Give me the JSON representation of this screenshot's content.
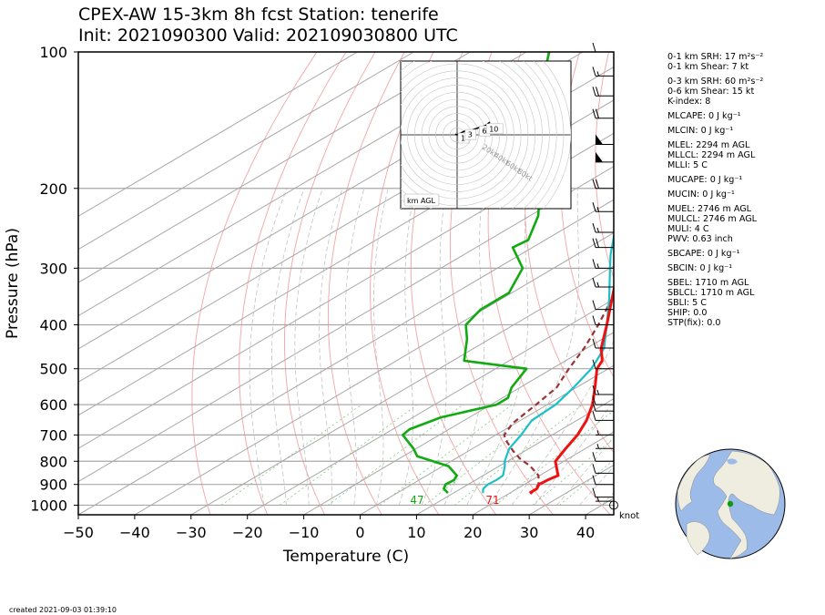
{
  "header": {
    "title_line1": "CPEX-AW 15-3km  8h fcst  Station: tenerife",
    "title_line2": "Init: 2021090300  Valid: 202109030800 UTC"
  },
  "footer": {
    "created": "created 2021-09-03 01:39:10"
  },
  "hodograph": {
    "label": "km AGL",
    "ring_labels": [
      "20kt",
      "40kt",
      "60kt",
      "80kt"
    ],
    "height_labels": [
      "1",
      "3",
      "6",
      "10"
    ],
    "u_kt": [
      -3,
      0,
      4,
      10,
      16,
      30,
      40,
      46
    ],
    "v_kt": [
      1,
      0,
      2,
      5,
      5,
      10,
      13,
      18
    ]
  },
  "indices": [
    "0-1 km SRH: 17 m²s⁻²",
    "0-1 km Shear: 7 kt",
    "0-3 km SRH: 60 m²s⁻²",
    "0-6 km Shear: 15 kt",
    "K-index: 8",
    "MLCAPE: 0 J kg⁻¹",
    "MLCIN: 0 J kg⁻¹",
    "MLEL: 2294 m AGL",
    "MLLCL: 2294 m AGL",
    "MLLI: 5 C",
    "MUCAPE: 0 J kg⁻¹",
    "MUCIN: 0 J kg⁻¹",
    "MUEL: 2746 m AGL",
    "MULCL: 2746 m AGL",
    "MULI: 4 C",
    "PWV: 0.63 inch",
    "SBCAPE: 0 J kg⁻¹",
    "SBCIN: 0 J kg⁻¹",
    "SBEL: 1710 m AGL",
    "SBLCL: 1710 m AGL",
    "SBLI: 5 C",
    "SHIP: 0.0",
    "STP(fix): 0.0"
  ],
  "chart_data": {
    "type": "line",
    "xlabel": "Temperature (C)",
    "ylabel": "Pressure (hPa)",
    "xlim": [
      -50,
      45
    ],
    "ylim": [
      1050,
      100
    ],
    "y_scale": "log",
    "skew": true,
    "x_ticks": [
      -50,
      -40,
      -30,
      -20,
      -10,
      0,
      10,
      20,
      30,
      40
    ],
    "y_ticks": [
      100,
      200,
      300,
      400,
      500,
      600,
      700,
      800,
      900,
      1000
    ],
    "grid": true,
    "surface_labels": {
      "temperature": "71",
      "dewpoint": "47"
    },
    "wind_units": "knot",
    "colors": {
      "temperature": "#ee1111",
      "dewpoint": "#11aa11",
      "virtual_temperature": "#19c0c8",
      "parcel": "#993333"
    },
    "series": [
      {
        "points": [
          [
            940,
            23.5
          ],
          [
            920,
            23.5
          ],
          [
            900,
            22.6
          ],
          [
            880,
            22.8
          ],
          [
            860,
            23.3
          ],
          [
            850,
            22.5
          ],
          [
            800,
            18.5
          ],
          [
            750,
            16.5
          ],
          [
            700,
            14.5
          ],
          [
            650,
            11.7
          ],
          [
            600,
            8.0
          ],
          [
            550,
            3.3
          ],
          [
            500,
            -2.0
          ],
          [
            480,
            -3.5
          ],
          [
            450,
            -7.5
          ],
          [
            400,
            -13.5
          ],
          [
            350,
            -20.5
          ],
          [
            300,
            -28.5
          ],
          [
            280,
            -32.0
          ],
          [
            250,
            -37.0
          ],
          [
            200,
            -45.5
          ],
          [
            180,
            -49.0
          ],
          [
            150,
            -56.0
          ],
          [
            125,
            -63.5
          ],
          [
            100,
            -71.0
          ]
        ]
      },
      {
        "points": [
          [
            940,
            9.0
          ],
          [
            920,
            7.0
          ],
          [
            900,
            6.0
          ],
          [
            880,
            6.2
          ],
          [
            860,
            5.3
          ],
          [
            820,
            1.0
          ],
          [
            780,
            -7.5
          ],
          [
            750,
            -10.5
          ],
          [
            700,
            -16.5
          ],
          [
            680,
            -17.0
          ],
          [
            640,
            -15.0
          ],
          [
            600,
            -9.0
          ],
          [
            580,
            -9.0
          ],
          [
            550,
            -11.5
          ],
          [
            500,
            -14.5
          ],
          [
            480,
            -28.0
          ],
          [
            430,
            -34.0
          ],
          [
            400,
            -38.5
          ],
          [
            370,
            -40.5
          ],
          [
            340,
            -40.5
          ],
          [
            300,
            -45.5
          ],
          [
            270,
            -53.5
          ],
          [
            260,
            -53.0
          ],
          [
            230,
            -58.5
          ],
          [
            200,
            -66.5
          ],
          [
            170,
            -74.0
          ],
          [
            160,
            -82.0
          ],
          [
            140,
            -90.0
          ],
          [
            120,
            -96.5
          ],
          [
            100,
            -106.0
          ]
        ]
      },
      {
        "points": [
          [
            940,
            15.2
          ],
          [
            920,
            14.0
          ],
          [
            900,
            13.5
          ],
          [
            880,
            13.7
          ],
          [
            860,
            13.5
          ],
          [
            820,
            11.0
          ],
          [
            800,
            9.5
          ],
          [
            750,
            6.5
          ],
          [
            700,
            4.5
          ],
          [
            650,
            2.0
          ],
          [
            600,
            1.5
          ],
          [
            550,
            -0.5
          ],
          [
            500,
            -3.0
          ],
          [
            480,
            -4.5
          ],
          [
            450,
            -7.0
          ],
          [
            400,
            -13.5
          ],
          [
            350,
            -21.0
          ],
          [
            300,
            -30.0
          ],
          [
            280,
            -34.0
          ],
          [
            250,
            -40.0
          ],
          [
            200,
            -47.5
          ],
          [
            180,
            -51.5
          ],
          [
            150,
            -59.0
          ],
          [
            125,
            -68.0
          ],
          [
            100,
            -74.0
          ]
        ]
      },
      {
        "points": [
          [
            945,
            24.0
          ],
          [
            900,
            22.5
          ],
          [
            860,
            19.8
          ],
          [
            820,
            15.5
          ],
          [
            790,
            11.5
          ],
          [
            760,
            8.0
          ],
          [
            720,
            3.5
          ],
          [
            700,
            1.5
          ],
          [
            660,
            -0.5
          ],
          [
            600,
            -2.0
          ],
          [
            550,
            -3.5
          ],
          [
            500,
            -7.0
          ],
          [
            450,
            -10.5
          ],
          [
            400,
            -15.0
          ],
          [
            350,
            -20.5
          ],
          [
            300,
            -27.5
          ],
          [
            250,
            -36.0
          ],
          [
            200,
            -46.0
          ],
          [
            170,
            -53.0
          ],
          [
            150,
            -58.5
          ],
          [
            130,
            -65.0
          ],
          [
            115,
            -70.0
          ]
        ]
      }
    ],
    "wind_barbs": [
      {
        "p": 1000,
        "speed": 0
      },
      {
        "p": 980,
        "speed": 5
      },
      {
        "p": 960,
        "speed": 10
      },
      {
        "p": 900,
        "speed": 10
      },
      {
        "p": 850,
        "speed": 10
      },
      {
        "p": 800,
        "speed": 10
      },
      {
        "p": 750,
        "speed": 5
      },
      {
        "p": 700,
        "speed": 5
      },
      {
        "p": 650,
        "speed": 10
      },
      {
        "p": 620,
        "speed": 10
      },
      {
        "p": 600,
        "speed": 10
      },
      {
        "p": 570,
        "speed": 15
      },
      {
        "p": 500,
        "speed": 10
      },
      {
        "p": 450,
        "speed": 10
      },
      {
        "p": 400,
        "speed": 10
      },
      {
        "p": 370,
        "speed": 10
      },
      {
        "p": 330,
        "speed": 15
      },
      {
        "p": 300,
        "speed": 15
      },
      {
        "p": 270,
        "speed": 20
      },
      {
        "p": 250,
        "speed": 15
      },
      {
        "p": 225,
        "speed": 15
      },
      {
        "p": 200,
        "speed": 20
      },
      {
        "p": 175,
        "speed": 50
      },
      {
        "p": 160,
        "speed": 50
      },
      {
        "p": 140,
        "speed": 20
      },
      {
        "p": 125,
        "speed": 20
      },
      {
        "p": 113,
        "speed": 15
      },
      {
        "p": 100,
        "speed": 10
      }
    ]
  }
}
